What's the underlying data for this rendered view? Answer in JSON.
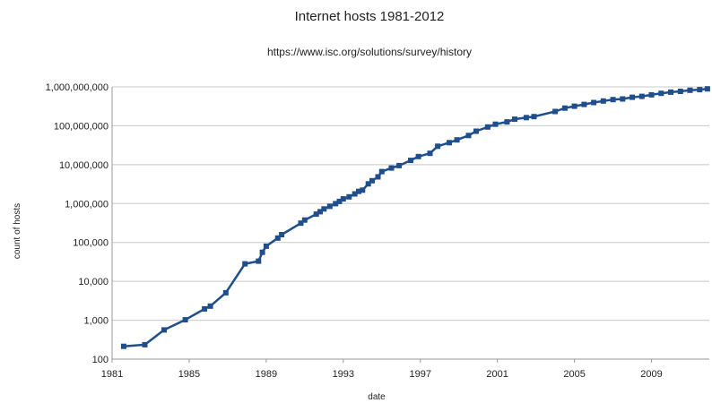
{
  "chart_data": {
    "type": "line",
    "title": "Internet hosts 1981-2012",
    "subtitle": "https://www.isc.org/solutions/survey/history",
    "xlabel": "date",
    "ylabel": "count of hosts",
    "x_scale": "linear",
    "y_scale": "log",
    "xlim": [
      1981,
      2012
    ],
    "ylim": [
      100,
      1000000000
    ],
    "x_ticks": [
      1981,
      1985,
      1989,
      1993,
      1997,
      2001,
      2005,
      2009
    ],
    "x_tick_labels": [
      "1981",
      "1985",
      "1989",
      "1993",
      "1997",
      "2001",
      "2005",
      "2009"
    ],
    "y_ticks": [
      100,
      1000,
      10000,
      100000,
      1000000,
      10000000,
      100000000,
      1000000000
    ],
    "y_tick_labels": [
      "100",
      "1,000",
      "10,000",
      "100,000",
      "1,000,000",
      "10,000,000",
      "100,000,000",
      "1,000,000,000"
    ],
    "grid": "horizontal",
    "legend": "none",
    "colors": {
      "series": "#1f4e8c",
      "grid": "#c8c8c8",
      "axis": "#999999"
    },
    "marker": "square",
    "series": [
      {
        "x": [
          1981.6,
          1982.7,
          1983.7,
          1984.8,
          1985.8,
          1986.1,
          1986.9,
          1987.9,
          1988.6,
          1988.8,
          1989.0,
          1989.6,
          1989.8,
          1990.8,
          1991.0,
          1991.6,
          1991.8,
          1992.0,
          1992.3,
          1992.6,
          1992.8,
          1993.0,
          1993.3,
          1993.6,
          1993.8,
          1994.0,
          1994.3,
          1994.5,
          1994.8,
          1995.0,
          1995.5,
          1995.9,
          1996.5,
          1996.9,
          1997.5,
          1997.9,
          1998.5,
          1998.9,
          1999.5,
          1999.9,
          2000.5,
          2000.9,
          2001.5,
          2001.9,
          2002.5,
          2002.9,
          2004.0,
          2004.5,
          2005.0,
          2005.5,
          2006.0,
          2006.5,
          2007.0,
          2007.5,
          2008.0,
          2008.5,
          2009.0,
          2009.5,
          2010.0,
          2010.5,
          2011.0,
          2011.5,
          2011.9
        ],
        "y": [
          213,
          235,
          562,
          1024,
          1961,
          2308,
          5089,
          28174,
          33000,
          56000,
          80000,
          130000,
          159000,
          313000,
          376000,
          535000,
          617000,
          727000,
          850000,
          992000,
          1136000,
          1313000,
          1486000,
          1776000,
          2056000,
          2217000,
          3212000,
          3864000,
          4852000,
          6642000,
          8200000,
          9472000,
          12881000,
          16146000,
          19540000,
          29670000,
          36739000,
          43230000,
          56218000,
          72398000,
          93047000,
          109574000,
          125888000,
          147344000,
          162128000,
          171638000,
          233101000,
          285139000,
          317646000,
          353284000,
          394991000,
          433193000,
          472000000,
          489774000,
          541677000,
          570937000,
          625226000,
          681064000,
          732740000,
          768913000,
          818374000,
          849869000,
          888239000
        ]
      }
    ]
  }
}
